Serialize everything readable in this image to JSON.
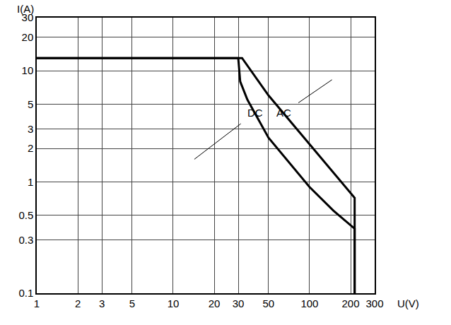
{
  "chart_data": {
    "type": "line",
    "xlabel": "U(V)",
    "ylabel": "I(A)",
    "log": true,
    "grid": true,
    "xlim": [
      1,
      300
    ],
    "ylim": [
      0.1,
      30
    ],
    "xticks": [
      1,
      2,
      3,
      5,
      10,
      20,
      30,
      50,
      100,
      200,
      300
    ],
    "yticks": [
      0.1,
      0.3,
      0.5,
      1,
      2,
      3,
      5,
      10,
      20,
      30
    ],
    "series": [
      {
        "name": "AC",
        "color": "#000000",
        "line_style": "solid",
        "x": [
          1,
          32,
          50,
          100,
          214,
          214
        ],
        "values": [
          13,
          13,
          6,
          2.2,
          0.72,
          0.1
        ]
      },
      {
        "name": "DC",
        "color": "#000000",
        "line_style": "solid",
        "x": [
          1,
          30,
          31,
          35,
          50,
          100,
          150,
          214,
          214
        ],
        "values": [
          13,
          13,
          8,
          5.5,
          2.5,
          0.9,
          0.55,
          0.38,
          0.1
        ]
      }
    ],
    "annotations": [
      {
        "text": "AC",
        "x": 146,
        "y": 8.3,
        "arrow_x": 65,
        "arrow_y": 4.2
      },
      {
        "text": "DC",
        "x": 14.3,
        "y": 1.6,
        "arrow_x": 40,
        "arrow_y": 4.2
      }
    ]
  }
}
